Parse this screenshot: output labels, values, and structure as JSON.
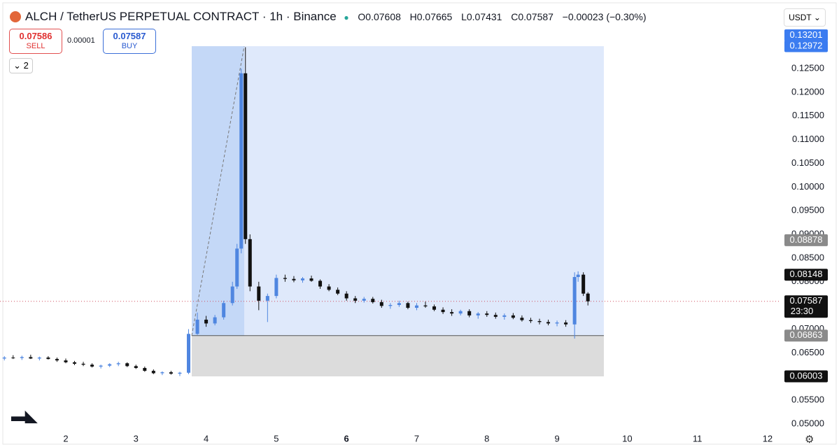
{
  "header": {
    "title": "ALCH / TetherUS PERPETUAL CONTRACT · 1h · Binance",
    "ohlc": [
      "O0.07608",
      "H0.07665",
      "L0.07431",
      "C0.07587"
    ],
    "change": "−0.00023 (−0.30%)"
  },
  "trade": {
    "sell_price": "0.07586",
    "sell": "SELL",
    "spread": "0.00001",
    "buy_price": "0.07587",
    "buy": "BUY"
  },
  "indicators_count": "2",
  "currency": "USDT",
  "chart_data": {
    "type": "candlestick",
    "x": [
      1.125,
      1.25,
      1.375,
      1.5,
      1.625,
      1.75,
      1.875,
      2.0,
      2.125,
      2.25,
      2.375,
      2.5,
      2.625,
      2.75,
      2.875,
      3.0,
      3.125,
      3.25,
      3.375,
      3.5,
      3.625,
      3.75,
      3.875,
      4.0,
      4.125,
      4.25,
      4.375,
      4.44,
      4.5,
      4.56,
      4.625,
      4.75,
      4.875,
      5.0,
      5.125,
      5.25,
      5.375,
      5.5,
      5.625,
      5.75,
      5.875,
      6.0,
      6.125,
      6.25,
      6.375,
      6.5,
      6.625,
      6.75,
      6.875,
      7.0,
      7.125,
      7.25,
      7.375,
      7.5,
      7.625,
      7.75,
      7.875,
      8.0,
      8.125,
      8.25,
      8.375,
      8.5,
      8.625,
      8.75,
      8.875,
      9.0,
      9.125,
      9.25,
      9.3,
      9.375,
      9.44
    ],
    "open": [
      0.0638,
      0.064,
      0.0639,
      0.0641,
      0.0638,
      0.064,
      0.0637,
      0.0634,
      0.063,
      0.0627,
      0.0625,
      0.0621,
      0.0623,
      0.0626,
      0.0628,
      0.0622,
      0.0618,
      0.0612,
      0.0607,
      0.0609,
      0.0606,
      0.0608,
      0.069,
      0.072,
      0.0712,
      0.0725,
      0.0755,
      0.079,
      0.087,
      0.124,
      0.089,
      0.079,
      0.076,
      0.077,
      0.0808,
      0.0806,
      0.0803,
      0.0807,
      0.0802,
      0.079,
      0.0783,
      0.0775,
      0.0765,
      0.076,
      0.0764,
      0.0757,
      0.0749,
      0.0751,
      0.0755,
      0.0745,
      0.075,
      0.0748,
      0.0741,
      0.0736,
      0.0733,
      0.0738,
      0.0729,
      0.0733,
      0.073,
      0.0726,
      0.0729,
      0.0724,
      0.0719,
      0.0717,
      0.0715,
      0.0712,
      0.0714,
      0.071,
      0.081,
      0.0815,
      0.0775
    ],
    "high": [
      0.0643,
      0.0645,
      0.0644,
      0.0646,
      0.0642,
      0.0643,
      0.064,
      0.0638,
      0.0633,
      0.0631,
      0.0628,
      0.0625,
      0.0628,
      0.0631,
      0.063,
      0.0625,
      0.0621,
      0.0615,
      0.0611,
      0.0612,
      0.061,
      0.07,
      0.0735,
      0.0728,
      0.073,
      0.076,
      0.08,
      0.088,
      0.125,
      0.1295,
      0.09,
      0.08,
      0.0775,
      0.0815,
      0.0815,
      0.0812,
      0.081,
      0.0813,
      0.0805,
      0.0795,
      0.0788,
      0.078,
      0.077,
      0.0768,
      0.0768,
      0.0762,
      0.0755,
      0.076,
      0.0758,
      0.0755,
      0.0758,
      0.0752,
      0.0746,
      0.0742,
      0.0741,
      0.0742,
      0.0736,
      0.0738,
      0.0735,
      0.0733,
      0.0734,
      0.0729,
      0.0724,
      0.0722,
      0.072,
      0.0718,
      0.0719,
      0.082,
      0.0822,
      0.082,
      0.0778
    ],
    "low": [
      0.0634,
      0.0637,
      0.0635,
      0.0637,
      0.0634,
      0.0636,
      0.0631,
      0.0628,
      0.0624,
      0.0622,
      0.0619,
      0.0617,
      0.062,
      0.0622,
      0.062,
      0.0616,
      0.061,
      0.0605,
      0.0603,
      0.0604,
      0.0601,
      0.0605,
      0.0688,
      0.0705,
      0.0708,
      0.072,
      0.075,
      0.0785,
      0.086,
      0.088,
      0.078,
      0.074,
      0.0715,
      0.0765,
      0.08,
      0.0799,
      0.0798,
      0.08,
      0.0785,
      0.078,
      0.0772,
      0.076,
      0.0755,
      0.0756,
      0.0754,
      0.0745,
      0.0743,
      0.0747,
      0.0742,
      0.074,
      0.0745,
      0.0738,
      0.0732,
      0.0728,
      0.0729,
      0.0725,
      0.0722,
      0.0726,
      0.0722,
      0.072,
      0.0721,
      0.0716,
      0.0713,
      0.071,
      0.0708,
      0.0706,
      0.0705,
      0.068,
      0.08,
      0.077,
      0.075
    ],
    "close": [
      0.064,
      0.0639,
      0.0641,
      0.0638,
      0.064,
      0.0637,
      0.0634,
      0.063,
      0.0627,
      0.0625,
      0.0621,
      0.0623,
      0.0626,
      0.0628,
      0.0622,
      0.0618,
      0.0612,
      0.0607,
      0.0609,
      0.0606,
      0.0608,
      0.069,
      0.072,
      0.0712,
      0.0725,
      0.0755,
      0.079,
      0.087,
      0.124,
      0.089,
      0.079,
      0.076,
      0.077,
      0.0808,
      0.0806,
      0.0803,
      0.0807,
      0.0802,
      0.079,
      0.0783,
      0.0775,
      0.0765,
      0.076,
      0.0764,
      0.0757,
      0.0749,
      0.0751,
      0.0755,
      0.0745,
      0.075,
      0.0748,
      0.0741,
      0.0736,
      0.0733,
      0.0738,
      0.0729,
      0.0733,
      0.073,
      0.0726,
      0.0729,
      0.0724,
      0.0719,
      0.0717,
      0.0715,
      0.0712,
      0.0714,
      0.071,
      0.081,
      0.0815,
      0.0775,
      0.07587
    ],
    "up_color": "#4f86e0",
    "down_color": "#111111",
    "xlim": [
      1.0628,
      12.18
    ],
    "ylim": [
      0.04793,
      0.13947
    ],
    "xticks": [
      2,
      3,
      4,
      5,
      6,
      7,
      8,
      9,
      10,
      11,
      12
    ],
    "xtick_bold": 6,
    "yticks": [
      {
        "value": 0.05,
        "label": "0.05000"
      },
      {
        "value": 0.055,
        "label": "0.05500"
      },
      {
        "value": 0.06,
        "label": "0.06000"
      },
      {
        "value": 0.065,
        "label": "0.06500"
      },
      {
        "value": 0.07,
        "label": "0.07000"
      },
      {
        "value": 0.075,
        "label": "0.07500"
      },
      {
        "value": 0.08,
        "label": "0.08000"
      },
      {
        "value": 0.085,
        "label": "0.08500"
      },
      {
        "value": 0.09,
        "label": "0.09000"
      },
      {
        "value": 0.095,
        "label": "0.09500"
      },
      {
        "value": 0.1,
        "label": "0.10000"
      },
      {
        "value": 0.105,
        "label": "0.10500"
      },
      {
        "value": 0.11,
        "label": "0.11000"
      },
      {
        "value": 0.115,
        "label": "0.11500"
      },
      {
        "value": 0.12,
        "label": "0.12000"
      },
      {
        "value": 0.125,
        "label": "0.12500"
      }
    ],
    "price_tags": [
      {
        "value": 0.13201,
        "label": "0.13201",
        "color": "#3b7cf0"
      },
      {
        "value": 0.12972,
        "label": "0.12972",
        "color": "#3b7cf0"
      },
      {
        "value": 0.08878,
        "label": "0.08878",
        "color": "#8a8a8a"
      },
      {
        "value": 0.08148,
        "label": "0.08148",
        "color": "#111111"
      },
      {
        "value": 0.07587,
        "label": "0.07587",
        "color": "#111111"
      },
      {
        "value": 0.06863,
        "label": "0.06863",
        "color": "#8a8a8a"
      },
      {
        "value": 0.06003,
        "label": "0.06003",
        "color": "#111111"
      }
    ],
    "countdown": "23:30",
    "position": {
      "x_start": 3.795,
      "x_split": 4.543,
      "x_end": 9.667,
      "entry": 0.06863,
      "stop": 0.06003,
      "target": 0.12972
    },
    "last_price": 0.07587
  }
}
